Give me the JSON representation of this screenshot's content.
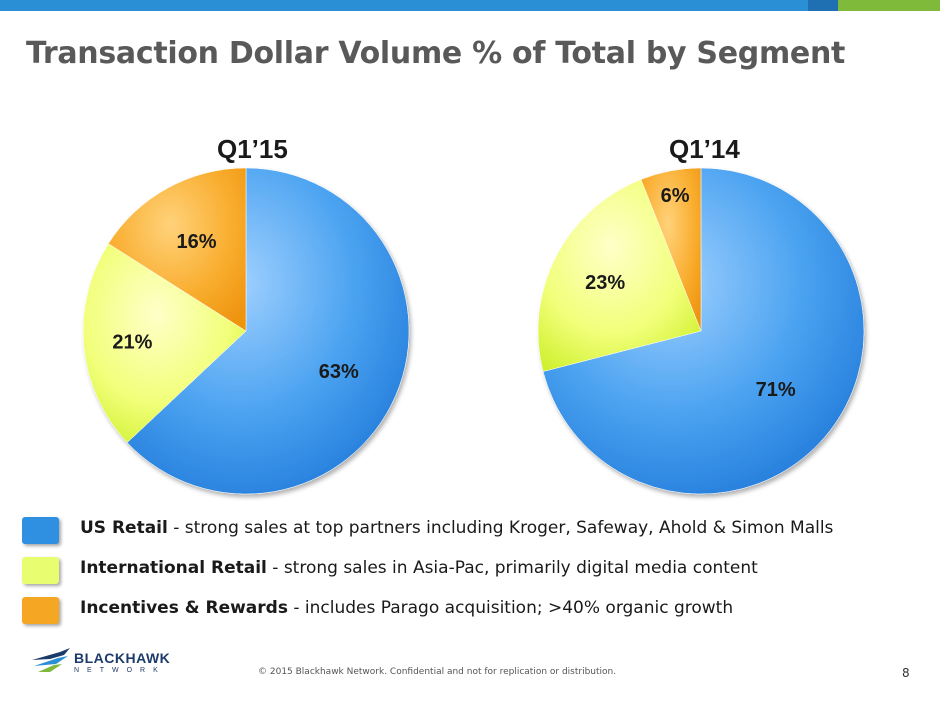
{
  "title": "Transaction Dollar Volume % of Total by Segment",
  "colors": {
    "bar_light": "#2b8fd6",
    "bar_dark": "#1f6fb3",
    "bar_green": "#7fba3a",
    "us_retail": "#2f8fe0",
    "international_retail": "#e8fd70",
    "incentives_rewards": "#f5a623"
  },
  "chart_data": [
    {
      "type": "pie",
      "title": "Q1’15",
      "slices": [
        {
          "name": "US Retail",
          "value": 63,
          "label": "63%"
        },
        {
          "name": "International Retail",
          "value": 21,
          "label": "21%"
        },
        {
          "name": "Incentives & Rewards",
          "value": 16,
          "label": "16%"
        }
      ]
    },
    {
      "type": "pie",
      "title": "Q1’14",
      "slices": [
        {
          "name": "US Retail",
          "value": 71,
          "label": "71%"
        },
        {
          "name": "International Retail",
          "value": 23,
          "label": "23%"
        },
        {
          "name": "Incentives & Rewards",
          "value": 6,
          "label": "6%"
        }
      ]
    }
  ],
  "legend": [
    {
      "key": "us_retail",
      "name": "US Retail",
      "desc": " - strong sales at top partners including Kroger, Safeway, Ahold & Simon Malls"
    },
    {
      "key": "international_retail",
      "name": "International Retail",
      "desc": " - strong sales in Asia-Pac, primarily digital media content"
    },
    {
      "key": "incentives_rewards",
      "name": "Incentives & Rewards",
      "desc": " - includes Parago acquisition; >40% organic growth"
    }
  ],
  "logo": {
    "word": "BLACKHAWK",
    "sub": "NETWORK"
  },
  "footer": "© 2015 Blackhawk Network. Confidential and not for replication or distribution.",
  "page_number": "8"
}
